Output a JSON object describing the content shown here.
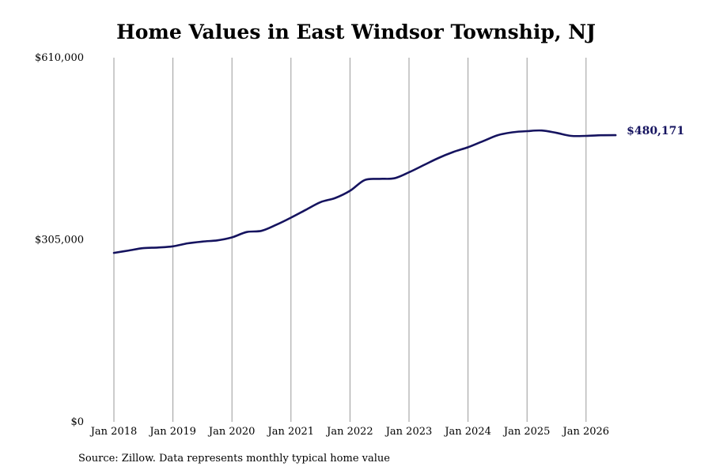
{
  "chart_data": {
    "type": "line",
    "title": "Home Values in East Windsor Township, NJ",
    "xlabel": "",
    "ylabel": "",
    "ylim": [
      0,
      610000
    ],
    "yticks": [
      {
        "value": 0,
        "label": "$0"
      },
      {
        "value": 305000,
        "label": "$305,000"
      },
      {
        "value": 610000,
        "label": "$610,000"
      }
    ],
    "xlim": [
      2018.0,
      2026.55
    ],
    "xticks": [
      {
        "value": 2018,
        "label": "Jan 2018"
      },
      {
        "value": 2019,
        "label": "Jan 2019"
      },
      {
        "value": 2020,
        "label": "Jan 2020"
      },
      {
        "value": 2021,
        "label": "Jan 2021"
      },
      {
        "value": 2022,
        "label": "Jan 2022"
      },
      {
        "value": 2023,
        "label": "Jan 2023"
      },
      {
        "value": 2024,
        "label": "Jan 2024"
      },
      {
        "value": 2025,
        "label": "Jan 2025"
      },
      {
        "value": 2026,
        "label": "Jan 2026"
      }
    ],
    "grid": {
      "vertical": true,
      "horizontal": false
    },
    "line_color": "#15135f",
    "end_label": "$480,171",
    "series": [
      {
        "x": [
          2018.0,
          2018.25,
          2018.5,
          2018.75,
          2019.0,
          2019.25,
          2019.5,
          2019.75,
          2020.0,
          2020.25,
          2020.5,
          2020.75,
          2021.0,
          2021.25,
          2021.5,
          2021.75,
          2022.0,
          2022.25,
          2022.5,
          2022.75,
          2023.0,
          2023.25,
          2023.5,
          2023.75,
          2024.0,
          2024.25,
          2024.5,
          2024.75,
          2025.0,
          2025.25,
          2025.5,
          2025.75,
          2026.0,
          2026.25,
          2026.5
        ],
        "values": [
          283000,
          287000,
          291000,
          292000,
          294000,
          299000,
          302000,
          304000,
          309000,
          318000,
          320000,
          330000,
          342000,
          355000,
          368000,
          375000,
          387000,
          405000,
          407000,
          408000,
          418000,
          430000,
          442000,
          452000,
          460000,
          470000,
          480000,
          485000,
          487000,
          488000,
          484000,
          479000,
          479000,
          480000,
          480171
        ]
      }
    ]
  },
  "source_note": "Source: Zillow. Data represents monthly typical home value"
}
